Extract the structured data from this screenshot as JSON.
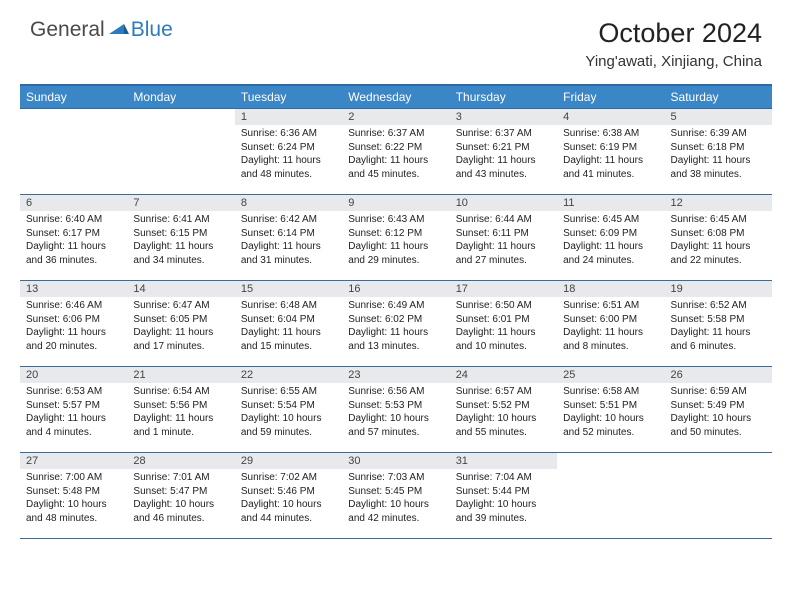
{
  "logo": {
    "general": "General",
    "blue": "Blue"
  },
  "title": "October 2024",
  "location": "Ying'awati, Xinjiang, China",
  "colors": {
    "header_bg": "#3b86c6",
    "header_border": "#2d6aa3",
    "row_border": "#3b6b9a",
    "daynum_bg": "#e7e9ec",
    "logo_blue": "#2d7bbf",
    "text": "#222222",
    "page_bg": "#ffffff"
  },
  "weekdays": [
    "Sunday",
    "Monday",
    "Tuesday",
    "Wednesday",
    "Thursday",
    "Friday",
    "Saturday"
  ],
  "firstDayOffset": 2,
  "days": [
    {
      "n": "1",
      "sr": "6:36 AM",
      "ss": "6:24 PM",
      "dl": "11 hours and 48 minutes."
    },
    {
      "n": "2",
      "sr": "6:37 AM",
      "ss": "6:22 PM",
      "dl": "11 hours and 45 minutes."
    },
    {
      "n": "3",
      "sr": "6:37 AM",
      "ss": "6:21 PM",
      "dl": "11 hours and 43 minutes."
    },
    {
      "n": "4",
      "sr": "6:38 AM",
      "ss": "6:19 PM",
      "dl": "11 hours and 41 minutes."
    },
    {
      "n": "5",
      "sr": "6:39 AM",
      "ss": "6:18 PM",
      "dl": "11 hours and 38 minutes."
    },
    {
      "n": "6",
      "sr": "6:40 AM",
      "ss": "6:17 PM",
      "dl": "11 hours and 36 minutes."
    },
    {
      "n": "7",
      "sr": "6:41 AM",
      "ss": "6:15 PM",
      "dl": "11 hours and 34 minutes."
    },
    {
      "n": "8",
      "sr": "6:42 AM",
      "ss": "6:14 PM",
      "dl": "11 hours and 31 minutes."
    },
    {
      "n": "9",
      "sr": "6:43 AM",
      "ss": "6:12 PM",
      "dl": "11 hours and 29 minutes."
    },
    {
      "n": "10",
      "sr": "6:44 AM",
      "ss": "6:11 PM",
      "dl": "11 hours and 27 minutes."
    },
    {
      "n": "11",
      "sr": "6:45 AM",
      "ss": "6:09 PM",
      "dl": "11 hours and 24 minutes."
    },
    {
      "n": "12",
      "sr": "6:45 AM",
      "ss": "6:08 PM",
      "dl": "11 hours and 22 minutes."
    },
    {
      "n": "13",
      "sr": "6:46 AM",
      "ss": "6:06 PM",
      "dl": "11 hours and 20 minutes."
    },
    {
      "n": "14",
      "sr": "6:47 AM",
      "ss": "6:05 PM",
      "dl": "11 hours and 17 minutes."
    },
    {
      "n": "15",
      "sr": "6:48 AM",
      "ss": "6:04 PM",
      "dl": "11 hours and 15 minutes."
    },
    {
      "n": "16",
      "sr": "6:49 AM",
      "ss": "6:02 PM",
      "dl": "11 hours and 13 minutes."
    },
    {
      "n": "17",
      "sr": "6:50 AM",
      "ss": "6:01 PM",
      "dl": "11 hours and 10 minutes."
    },
    {
      "n": "18",
      "sr": "6:51 AM",
      "ss": "6:00 PM",
      "dl": "11 hours and 8 minutes."
    },
    {
      "n": "19",
      "sr": "6:52 AM",
      "ss": "5:58 PM",
      "dl": "11 hours and 6 minutes."
    },
    {
      "n": "20",
      "sr": "6:53 AM",
      "ss": "5:57 PM",
      "dl": "11 hours and 4 minutes."
    },
    {
      "n": "21",
      "sr": "6:54 AM",
      "ss": "5:56 PM",
      "dl": "11 hours and 1 minute."
    },
    {
      "n": "22",
      "sr": "6:55 AM",
      "ss": "5:54 PM",
      "dl": "10 hours and 59 minutes."
    },
    {
      "n": "23",
      "sr": "6:56 AM",
      "ss": "5:53 PM",
      "dl": "10 hours and 57 minutes."
    },
    {
      "n": "24",
      "sr": "6:57 AM",
      "ss": "5:52 PM",
      "dl": "10 hours and 55 minutes."
    },
    {
      "n": "25",
      "sr": "6:58 AM",
      "ss": "5:51 PM",
      "dl": "10 hours and 52 minutes."
    },
    {
      "n": "26",
      "sr": "6:59 AM",
      "ss": "5:49 PM",
      "dl": "10 hours and 50 minutes."
    },
    {
      "n": "27",
      "sr": "7:00 AM",
      "ss": "5:48 PM",
      "dl": "10 hours and 48 minutes."
    },
    {
      "n": "28",
      "sr": "7:01 AM",
      "ss": "5:47 PM",
      "dl": "10 hours and 46 minutes."
    },
    {
      "n": "29",
      "sr": "7:02 AM",
      "ss": "5:46 PM",
      "dl": "10 hours and 44 minutes."
    },
    {
      "n": "30",
      "sr": "7:03 AM",
      "ss": "5:45 PM",
      "dl": "10 hours and 42 minutes."
    },
    {
      "n": "31",
      "sr": "7:04 AM",
      "ss": "5:44 PM",
      "dl": "10 hours and 39 minutes."
    }
  ],
  "labels": {
    "sunrise": "Sunrise:",
    "sunset": "Sunset:",
    "daylight": "Daylight:"
  }
}
